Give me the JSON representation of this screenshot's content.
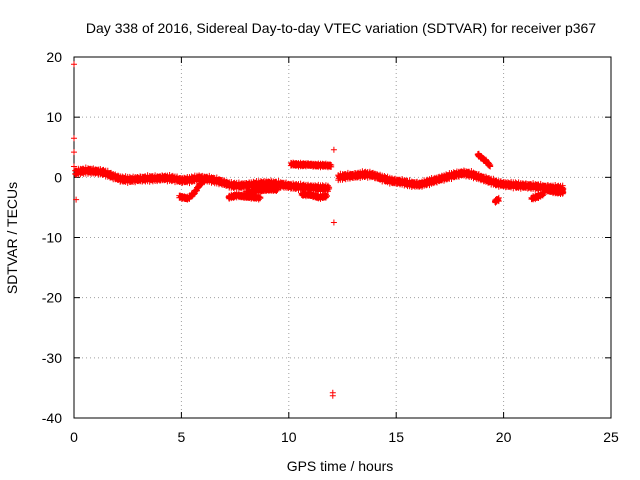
{
  "chart_data": {
    "type": "scatter",
    "title": "Day 338 of 2016, Sidereal Day-to-day VTEC variation (SDTVAR) for receiver p367",
    "xlabel": "GPS time / hours",
    "ylabel": "SDTVAR / TECUs",
    "xlim": [
      0,
      25
    ],
    "ylim": [
      -40,
      20
    ],
    "xticks": [
      0,
      5,
      10,
      15,
      20,
      25
    ],
    "yticks": [
      -40,
      -30,
      -20,
      -10,
      0,
      10,
      20
    ],
    "grid": true,
    "marker": "+",
    "color": "#ff0000",
    "series": [
      {
        "name": "SDTVAR",
        "trend": [
          [
            0.05,
            0.8
          ],
          [
            0.3,
            1.0
          ],
          [
            0.6,
            1.1
          ],
          [
            1.0,
            1.0
          ],
          [
            1.4,
            0.8
          ],
          [
            1.8,
            0.2
          ],
          [
            2.2,
            -0.3
          ],
          [
            2.6,
            -0.4
          ],
          [
            3.0,
            -0.3
          ],
          [
            3.4,
            -0.2
          ],
          [
            3.8,
            -0.2
          ],
          [
            4.2,
            -0.1
          ],
          [
            4.6,
            -0.2
          ],
          [
            5.0,
            -0.5
          ],
          [
            5.4,
            -0.4
          ],
          [
            5.8,
            -0.1
          ],
          [
            6.3,
            -0.3
          ],
          [
            6.8,
            -0.7
          ],
          [
            7.3,
            -1.3
          ],
          [
            7.7,
            -1.4
          ],
          [
            8.1,
            -1.3
          ],
          [
            8.6,
            -1.1
          ],
          [
            9.1,
            -1.0
          ],
          [
            9.6,
            -1.2
          ],
          [
            10.2,
            -1.5
          ],
          [
            10.6,
            -1.6
          ],
          [
            11.0,
            -1.7
          ],
          [
            11.5,
            -1.8
          ],
          [
            11.9,
            -1.8
          ]
        ],
        "trend2": [
          [
            12.3,
            0.0
          ],
          [
            12.7,
            0.2
          ],
          [
            13.1,
            0.3
          ],
          [
            13.5,
            0.5
          ],
          [
            13.9,
            0.4
          ],
          [
            14.3,
            -0.1
          ],
          [
            14.8,
            -0.6
          ],
          [
            15.3,
            -0.8
          ],
          [
            15.7,
            -1.1
          ],
          [
            16.1,
            -1.2
          ],
          [
            16.5,
            -0.8
          ],
          [
            16.9,
            -0.4
          ],
          [
            17.3,
            0.0
          ],
          [
            17.7,
            0.4
          ],
          [
            18.1,
            0.7
          ],
          [
            18.5,
            0.5
          ],
          [
            18.9,
            0.0
          ],
          [
            19.3,
            -0.5
          ],
          [
            19.7,
            -1.0
          ],
          [
            20.1,
            -1.2
          ],
          [
            20.5,
            -1.3
          ],
          [
            20.9,
            -1.4
          ],
          [
            21.4,
            -1.5
          ],
          [
            21.9,
            -1.7
          ],
          [
            22.4,
            -1.8
          ],
          [
            22.8,
            -1.9
          ]
        ],
        "segments": [
          [
            [
              4.9,
              -3.2
            ],
            [
              5.3,
              -3.5
            ],
            [
              5.6,
              -2.6
            ],
            [
              5.9,
              -1.0
            ],
            [
              6.2,
              -0.2
            ]
          ],
          [
            [
              7.2,
              -3.3
            ],
            [
              7.6,
              -3.0
            ],
            [
              8.0,
              -3.2
            ],
            [
              8.4,
              -3.3
            ],
            [
              8.7,
              -3.4
            ]
          ],
          [
            [
              8.0,
              -2.6
            ],
            [
              8.5,
              -2.2
            ],
            [
              9.0,
              -2.0
            ],
            [
              9.5,
              -2.0
            ]
          ],
          [
            [
              10.1,
              2.2
            ],
            [
              10.5,
              2.1
            ],
            [
              10.9,
              2.1
            ],
            [
              11.3,
              2.0
            ],
            [
              11.7,
              2.0
            ],
            [
              12.0,
              1.9
            ]
          ],
          [
            [
              10.6,
              -2.8
            ],
            [
              11.0,
              -2.9
            ],
            [
              11.4,
              -3.3
            ],
            [
              11.8,
              -3.1
            ]
          ],
          [
            [
              18.8,
              3.8
            ],
            [
              19.0,
              3.2
            ],
            [
              19.2,
              2.6
            ],
            [
              19.4,
              1.8
            ]
          ],
          [
            [
              19.6,
              -4.0
            ],
            [
              19.8,
              -3.6
            ]
          ],
          [
            [
              21.3,
              -3.5
            ],
            [
              21.6,
              -3.2
            ],
            [
              21.9,
              -2.6
            ]
          ],
          [
            [
              22.0,
              -2.1
            ],
            [
              22.4,
              -2.4
            ],
            [
              22.8,
              -2.5
            ]
          ]
        ],
        "outliers": [
          [
            0.0,
            18.8
          ],
          [
            0.0,
            6.5
          ],
          [
            0.0,
            4.2
          ],
          [
            0.0,
            1.8
          ],
          [
            0.1,
            -3.7
          ],
          [
            12.1,
            4.6
          ],
          [
            12.1,
            -7.5
          ],
          [
            12.05,
            -35.8
          ],
          [
            12.05,
            -36.3
          ]
        ]
      }
    ]
  }
}
